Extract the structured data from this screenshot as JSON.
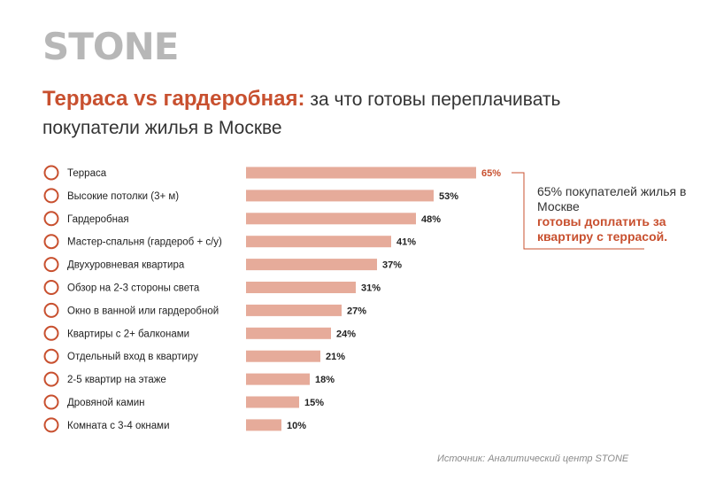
{
  "brand": {
    "logo_text": "STONE"
  },
  "colors": {
    "accent": "#c8502f",
    "bar": "#e6ab9a",
    "logo": "#b7b7b7",
    "text": "#222222"
  },
  "header": {
    "title_accent": "Терраса vs гардеробная:",
    "title_rest": " за что готовы переплачивать покупатели жилья в Москве"
  },
  "callout": {
    "line1": "65% покупателей жилья в Москве",
    "line2": "готовы доплатить за квартиру с террасой."
  },
  "source": "Источник: Аналитический центр STONE",
  "chart_data": {
    "type": "bar",
    "orientation": "horizontal",
    "unit": "%",
    "categories": [
      "Терраса",
      "Высокие потолки (3+ м)",
      "Гардеробная",
      "Мастер-спальня (гардероб + с/у)",
      "Двухуровневая квартира",
      "Обзор на 2-3 стороны света",
      "Окно в ванной или гардеробной",
      "Квартиры с 2+ балконами",
      "Отдельный вход в квартиру",
      "2-5 квартир на этаже",
      "Дровяной камин",
      "Комната с 3-4 окнами"
    ],
    "values": [
      65,
      53,
      48,
      41,
      37,
      31,
      27,
      24,
      21,
      18,
      15,
      10
    ],
    "value_labels": [
      "65%",
      "53%",
      "48%",
      "41%",
      "37%",
      "31%",
      "27%",
      "24%",
      "21%",
      "18%",
      "15%",
      "10%"
    ],
    "highlight_index": 0,
    "xlim": [
      0,
      65
    ],
    "grid": false,
    "legend": "none"
  }
}
